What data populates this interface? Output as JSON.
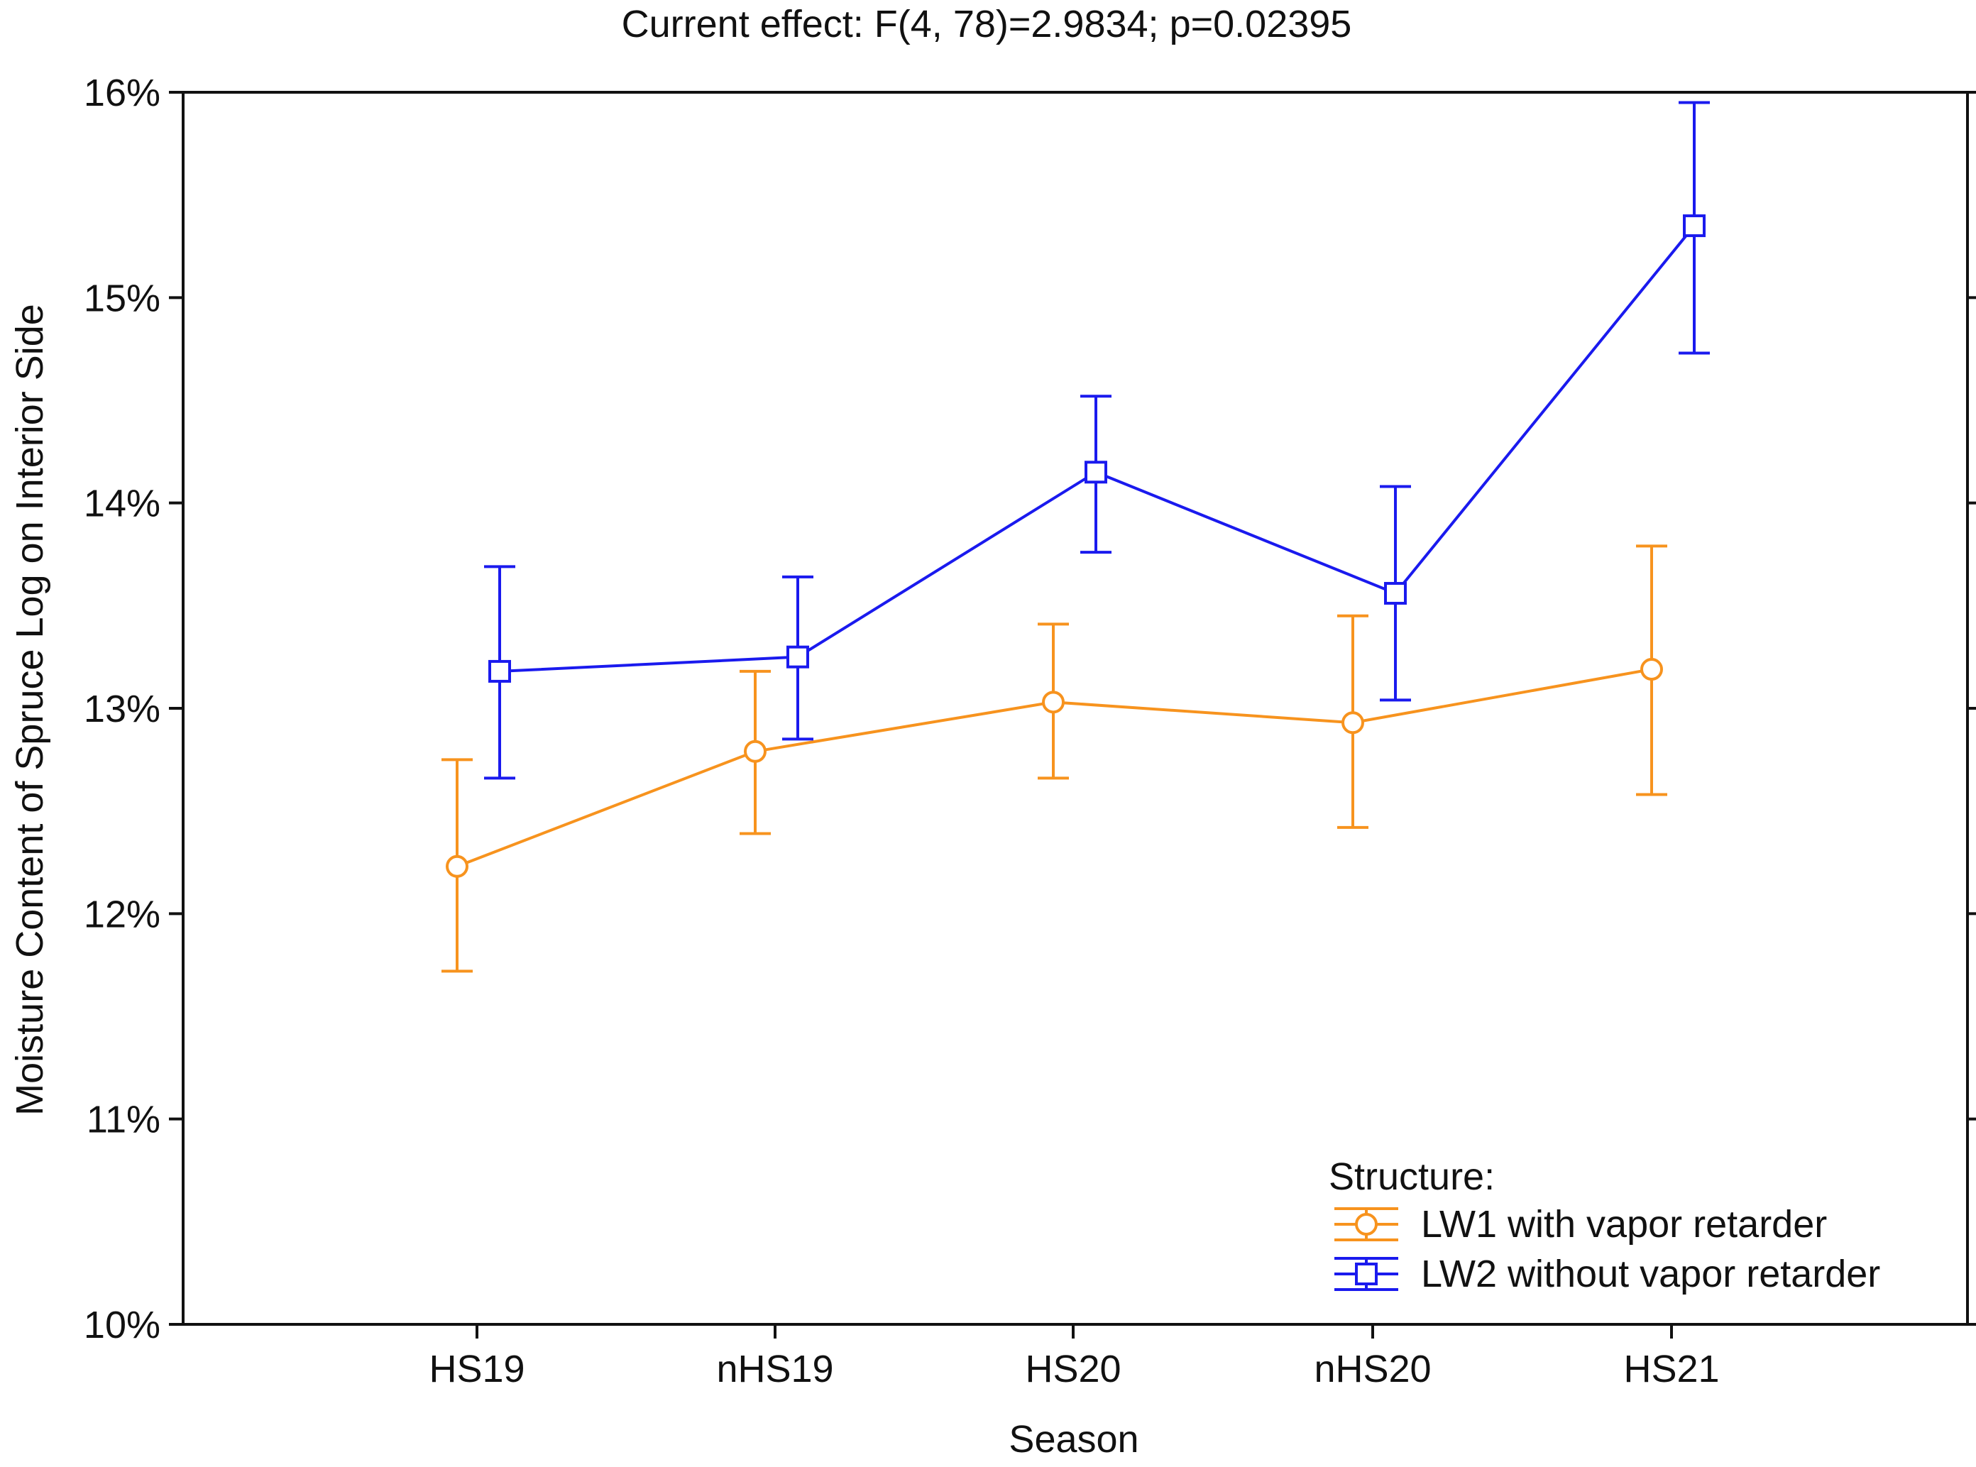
{
  "chart_data": {
    "type": "line",
    "title": "Current effect: F(4, 78)=2.9834; p=0.02395",
    "xlabel": "Season",
    "ylabel": "Moisture Content of Spruce Log on Interior Side",
    "categories": [
      "HS19",
      "nHS19",
      "HS20",
      "nHS20",
      "HS21"
    ],
    "ylim": [
      10,
      16
    ],
    "yticks": [
      10,
      11,
      12,
      13,
      14,
      15,
      16
    ],
    "ytick_labels": [
      "10%",
      "11%",
      "12%",
      "13%",
      "14%",
      "15%",
      "16%"
    ],
    "grid": false,
    "error_bars": true,
    "legend": {
      "title": "Structure:",
      "placement": "bottom-right"
    },
    "series": [
      {
        "name": "LW1 with vapor retarder",
        "color": "#f7931e",
        "marker": "circle",
        "values": [
          12.23,
          12.79,
          13.03,
          12.93,
          13.19
        ],
        "lower": [
          11.72,
          12.39,
          12.66,
          12.42,
          12.58
        ],
        "upper": [
          12.75,
          13.18,
          13.41,
          13.45,
          13.79
        ]
      },
      {
        "name": "LW2 without vapor retarder",
        "color": "#1a1aee",
        "marker": "square",
        "values": [
          13.18,
          13.25,
          14.15,
          13.56,
          15.35
        ],
        "lower": [
          12.66,
          12.85,
          13.76,
          13.04,
          14.73
        ],
        "upper": [
          13.69,
          13.64,
          14.52,
          14.08,
          15.95
        ]
      }
    ]
  }
}
